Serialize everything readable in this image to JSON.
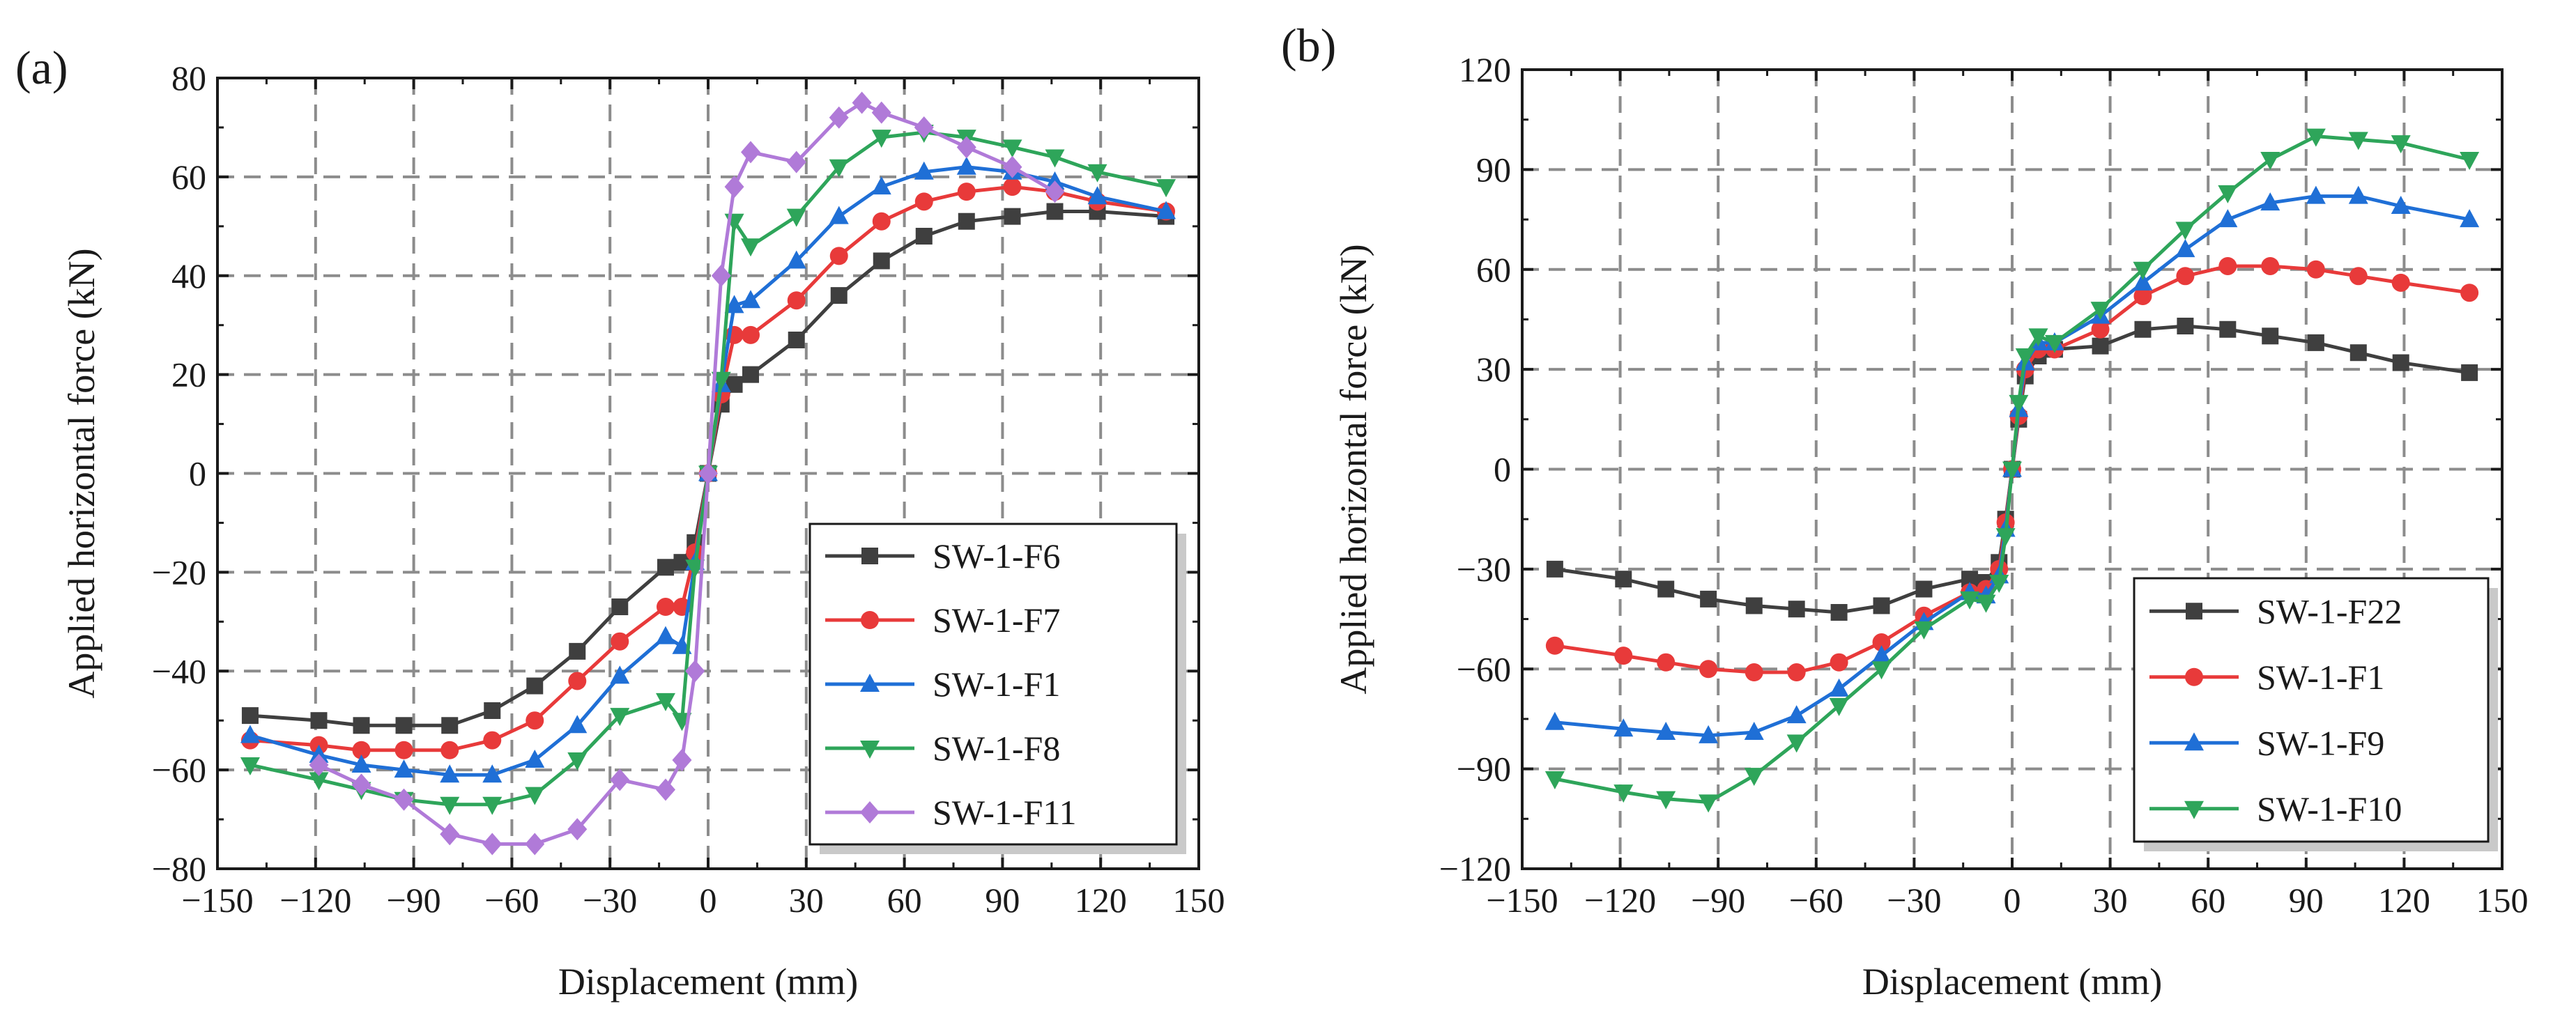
{
  "chart_data": [
    {
      "type": "line",
      "panel_label": "(a)",
      "xlabel": "Displacement (mm)",
      "ylabel": "Applied horizontal force (kN)",
      "xlim": [
        -150,
        150
      ],
      "ylim": [
        -80,
        80
      ],
      "xticks": [
        -150,
        -120,
        -90,
        -60,
        -30,
        0,
        30,
        60,
        90,
        120,
        150
      ],
      "xtick_labels": [
        "−150",
        "−120",
        "−90",
        "−60",
        "−30",
        "0",
        "30",
        "60",
        "90",
        "120",
        "150"
      ],
      "yticks": [
        -80,
        -60,
        -40,
        -20,
        0,
        20,
        40,
        60,
        80
      ],
      "ytick_labels": [
        "−80",
        "−60",
        "−40",
        "−20",
        "0",
        "20",
        "40",
        "60",
        "80"
      ],
      "grid": true,
      "legend_position": "bottom-right",
      "series": [
        {
          "name": "SW-1-F6",
          "color": "#3f3f3f",
          "marker": "square",
          "x": [
            -140,
            -119,
            -106,
            -93,
            -79,
            -66,
            -53,
            -40,
            -27,
            -13,
            -8,
            -4,
            0,
            4,
            8,
            13,
            27,
            40,
            53,
            66,
            79,
            93,
            106,
            119,
            140
          ],
          "y": [
            -49,
            -50,
            -51,
            -51,
            -51,
            -48,
            -43,
            -36,
            -27,
            -19,
            -18,
            -14,
            0,
            14,
            18,
            20,
            27,
            36,
            43,
            48,
            51,
            52,
            53,
            53,
            52
          ]
        },
        {
          "name": "SW-1-F7",
          "color": "#e83a3a",
          "marker": "circle",
          "x": [
            -140,
            -119,
            -106,
            -93,
            -79,
            -66,
            -53,
            -40,
            -27,
            -13,
            -8,
            -4,
            0,
            4,
            8,
            13,
            27,
            40,
            53,
            66,
            79,
            93,
            106,
            119,
            140
          ],
          "y": [
            -54,
            -55,
            -56,
            -56,
            -56,
            -54,
            -50,
            -42,
            -34,
            -27,
            -27,
            -16,
            0,
            16,
            28,
            28,
            35,
            44,
            51,
            55,
            57,
            58,
            57,
            55,
            53
          ]
        },
        {
          "name": "SW-1-F1",
          "color": "#1f6fd6",
          "marker": "triangle-up",
          "x": [
            -140,
            -119,
            -106,
            -93,
            -79,
            -66,
            -53,
            -40,
            -27,
            -13,
            -8,
            -4,
            0,
            4,
            8,
            13,
            27,
            40,
            53,
            66,
            79,
            93,
            106,
            119,
            140
          ],
          "y": [
            -53,
            -57,
            -59,
            -60,
            -61,
            -61,
            -58,
            -51,
            -41,
            -33,
            -35,
            -18,
            0,
            18,
            34,
            35,
            43,
            52,
            58,
            61,
            62,
            61,
            59,
            56,
            53
          ]
        },
        {
          "name": "SW-1-F8",
          "color": "#2ea55a",
          "marker": "triangle-down",
          "x": [
            -140,
            -119,
            -106,
            -93,
            -79,
            -66,
            -53,
            -40,
            -27,
            -13,
            -8,
            -4,
            0,
            4,
            8,
            13,
            27,
            40,
            53,
            66,
            79,
            93,
            106,
            119,
            140
          ],
          "y": [
            -59,
            -62,
            -64,
            -66,
            -67,
            -67,
            -65,
            -58,
            -49,
            -46,
            -50,
            -19,
            0,
            19,
            51,
            46,
            52,
            62,
            68,
            69,
            68,
            66,
            64,
            61,
            58
          ]
        },
        {
          "name": "SW-1-F11",
          "color": "#b07ad8",
          "marker": "diamond",
          "x": [
            -119,
            -106,
            -93,
            -79,
            -66,
            -53,
            -40,
            -27,
            -13,
            -8,
            -4,
            0,
            4,
            8,
            13,
            27,
            40,
            47,
            53,
            66,
            79,
            93,
            106
          ],
          "y": [
            -59,
            -63,
            -66,
            -73,
            -75,
            -75,
            -72,
            -62,
            -64,
            -58,
            -40,
            0,
            40,
            58,
            65,
            63,
            72,
            75,
            73,
            70,
            66,
            62,
            57
          ]
        }
      ]
    },
    {
      "type": "line",
      "panel_label": "(b)",
      "xlabel": "Displacement (mm)",
      "ylabel": "Applied horizontal force (kN)",
      "xlim": [
        -150,
        150
      ],
      "ylim": [
        -120,
        120
      ],
      "xticks": [
        -150,
        -120,
        -90,
        -60,
        -30,
        0,
        30,
        60,
        90,
        120,
        150
      ],
      "xtick_labels": [
        "−150",
        "−120",
        "−90",
        "−60",
        "−30",
        "0",
        "30",
        "60",
        "90",
        "120",
        "150"
      ],
      "yticks": [
        -120,
        -90,
        -60,
        -30,
        0,
        30,
        60,
        90,
        120
      ],
      "ytick_labels": [
        "−120",
        "−90",
        "−60",
        "−30",
        "0",
        "30",
        "60",
        "90",
        "120"
      ],
      "grid": true,
      "legend_position": "bottom-right",
      "series": [
        {
          "name": "SW-1-F22",
          "color": "#3f3f3f",
          "marker": "square",
          "x": [
            -140,
            -119,
            -106,
            -93,
            -79,
            -66,
            -53,
            -40,
            -27,
            -13,
            -8,
            -4,
            -2,
            0,
            2,
            4,
            8,
            13,
            27,
            40,
            53,
            66,
            79,
            93,
            106,
            119,
            140
          ],
          "y": [
            -30,
            -33,
            -36,
            -39,
            -41,
            -42,
            -43,
            -41,
            -36,
            -33,
            -34,
            -28,
            -15,
            0,
            15,
            28,
            34,
            36,
            37,
            42,
            43,
            42,
            40,
            38,
            35,
            32,
            29
          ]
        },
        {
          "name": "SW-1-F1",
          "color": "#e83a3a",
          "marker": "circle",
          "x": [
            -140,
            -119,
            -106,
            -93,
            -79,
            -66,
            -53,
            -40,
            -27,
            -13,
            -8,
            -4,
            -2,
            0,
            2,
            4,
            8,
            13,
            27,
            40,
            53,
            66,
            79,
            93,
            106,
            119,
            140
          ],
          "y": [
            -53,
            -56,
            -58,
            -60,
            -61,
            -61,
            -58,
            -52,
            -44,
            -37,
            -36,
            -30,
            -16,
            0,
            16,
            30,
            36,
            36,
            42,
            52,
            58,
            61,
            61,
            60,
            58,
            56,
            53
          ]
        },
        {
          "name": "SW-1-F9",
          "color": "#1f6fd6",
          "marker": "triangle-up",
          "x": [
            -140,
            -119,
            -106,
            -93,
            -79,
            -66,
            -53,
            -40,
            -27,
            -13,
            -8,
            -4,
            -2,
            0,
            2,
            4,
            8,
            13,
            27,
            40,
            53,
            66,
            79,
            93,
            106,
            119,
            140
          ],
          "y": [
            -76,
            -78,
            -79,
            -80,
            -79,
            -74,
            -66,
            -56,
            -46,
            -37,
            -38,
            -32,
            -18,
            0,
            18,
            32,
            38,
            38,
            46,
            56,
            66,
            75,
            80,
            82,
            82,
            79,
            75
          ]
        },
        {
          "name": "SW-1-F10",
          "color": "#2ea55a",
          "marker": "triangle-down",
          "x": [
            -140,
            -119,
            -106,
            -93,
            -79,
            -66,
            -53,
            -40,
            -27,
            -13,
            -8,
            -4,
            -2,
            0,
            2,
            4,
            8,
            13,
            27,
            40,
            53,
            66,
            79,
            93,
            106,
            119,
            140
          ],
          "y": [
            -93,
            -97,
            -99,
            -100,
            -92,
            -82,
            -71,
            -60,
            -48,
            -39,
            -40,
            -34,
            -20,
            0,
            20,
            34,
            40,
            38,
            48,
            60,
            72,
            83,
            93,
            100,
            99,
            98,
            93
          ]
        }
      ]
    }
  ]
}
